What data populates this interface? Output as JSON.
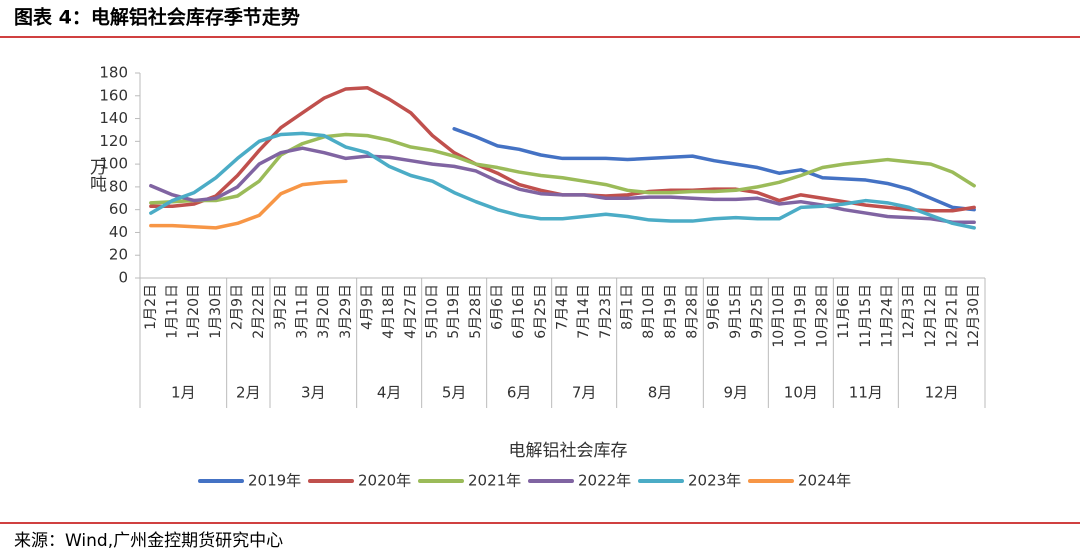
{
  "chart_data": {
    "type": "line",
    "title": "图表 4：电解铝社会库存季节走势",
    "source": "来源：Wind,广州金控期货研究中心",
    "xlabel": "电解铝社会库存",
    "ylabel": "万吨",
    "categories": [
      "1月2日",
      "1月11日",
      "1月20日",
      "1月30日",
      "2月9日",
      "2月22日",
      "3月2日",
      "3月11日",
      "3月20日",
      "3月29日",
      "4月9日",
      "4月18日",
      "4月27日",
      "5月10日",
      "5月19日",
      "5月28日",
      "6月6日",
      "6月16日",
      "6月25日",
      "7月4日",
      "7月14日",
      "7月23日",
      "8月1日",
      "8月10日",
      "8月19日",
      "8月28日",
      "9月6日",
      "9月15日",
      "9月25日",
      "10月10日",
      "10月19日",
      "10月28日",
      "11月6日",
      "11月15日",
      "11月24日",
      "12月3日",
      "12月12日",
      "12月21日",
      "12月30日"
    ],
    "groups": [
      {
        "label": "1月",
        "count": 4
      },
      {
        "label": "2月",
        "count": 2
      },
      {
        "label": "3月",
        "count": 4
      },
      {
        "label": "4月",
        "count": 3
      },
      {
        "label": "5月",
        "count": 3
      },
      {
        "label": "6月",
        "count": 3
      },
      {
        "label": "7月",
        "count": 3
      },
      {
        "label": "8月",
        "count": 4
      },
      {
        "label": "9月",
        "count": 3
      },
      {
        "label": "10月",
        "count": 3
      },
      {
        "label": "11月",
        "count": 3
      },
      {
        "label": "12月",
        "count": 4
      }
    ],
    "ylim": [
      0,
      180
    ],
    "yticks": [
      0,
      20,
      40,
      60,
      80,
      100,
      120,
      140,
      160,
      180
    ],
    "series": [
      {
        "name": "2019年",
        "color": "#4472c4",
        "values": [
          null,
          null,
          null,
          null,
          null,
          null,
          null,
          null,
          null,
          null,
          null,
          null,
          null,
          null,
          131,
          124,
          116,
          113,
          108,
          105,
          105,
          105,
          104,
          105,
          106,
          107,
          103,
          100,
          97,
          92,
          95,
          88,
          87,
          86,
          83,
          78,
          70,
          62,
          60
        ]
      },
      {
        "name": "2020年",
        "color": "#c0504d",
        "values": [
          63,
          63,
          65,
          72,
          90,
          112,
          132,
          145,
          158,
          166,
          167,
          157,
          145,
          125,
          110,
          100,
          92,
          82,
          77,
          73,
          73,
          72,
          73,
          76,
          77,
          77,
          78,
          78,
          75,
          68,
          73,
          70,
          67,
          64,
          62,
          60,
          59,
          59,
          62
        ]
      },
      {
        "name": "2021年",
        "color": "#9bbb59",
        "values": [
          66,
          67,
          68,
          68,
          72,
          85,
          108,
          118,
          124,
          126,
          125,
          121,
          115,
          112,
          107,
          100,
          97,
          93,
          90,
          88,
          85,
          82,
          77,
          75,
          75,
          76,
          76,
          77,
          80,
          84,
          90,
          97,
          100,
          102,
          104,
          102,
          100,
          93,
          81
        ]
      },
      {
        "name": "2022年",
        "color": "#8064a2",
        "values": [
          81,
          73,
          68,
          70,
          80,
          100,
          110,
          114,
          110,
          105,
          107,
          106,
          103,
          100,
          98,
          94,
          85,
          78,
          74,
          73,
          73,
          70,
          70,
          71,
          71,
          70,
          69,
          69,
          70,
          65,
          67,
          64,
          60,
          57,
          54,
          53,
          52,
          49,
          49
        ]
      },
      {
        "name": "2023年",
        "color": "#4bacc6",
        "values": [
          57,
          68,
          75,
          88,
          105,
          120,
          126,
          127,
          125,
          115,
          110,
          98,
          90,
          85,
          75,
          67,
          60,
          55,
          52,
          52,
          54,
          56,
          54,
          51,
          50,
          50,
          52,
          53,
          52,
          52,
          62,
          63,
          65,
          68,
          66,
          62,
          55,
          48,
          44
        ]
      },
      {
        "name": "2024年",
        "color": "#f79646",
        "values": [
          46,
          46,
          45,
          44,
          48,
          55,
          74,
          82,
          84,
          85,
          null,
          null,
          null,
          null,
          null,
          null,
          null,
          null,
          null,
          null,
          null,
          null,
          null,
          null,
          null,
          null,
          null,
          null,
          null,
          null,
          null,
          null,
          null,
          null,
          null,
          null,
          null,
          null,
          null
        ]
      }
    ]
  }
}
